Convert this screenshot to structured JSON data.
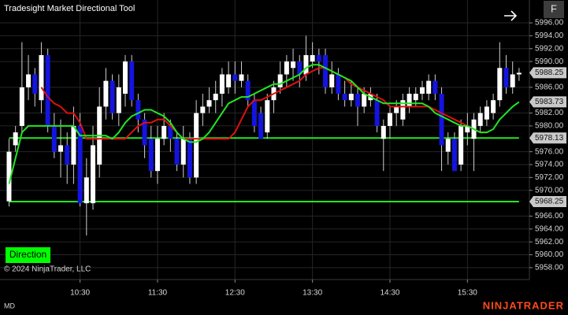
{
  "chart_data": {
    "type": "candlestick",
    "title": "Tradesight Market Directional Tool",
    "copyright": "© 2024 NinjaTrader, LLC",
    "button": "Direction",
    "corner_button": "F",
    "status": "MD",
    "brand": "NINJATRADER",
    "up_color": "#ffffff",
    "down_color": "#1414e0",
    "wick_color": "#cfcfcf",
    "grid": true,
    "x": [
      "09:35",
      "09:40",
      "09:45",
      "09:50",
      "09:55",
      "10:00",
      "10:05",
      "10:10",
      "10:15",
      "10:20",
      "10:25",
      "10:30",
      "10:35",
      "10:40",
      "10:45",
      "10:50",
      "10:55",
      "11:00",
      "11:05",
      "11:10",
      "11:15",
      "11:20",
      "11:25",
      "11:30",
      "11:35",
      "11:40",
      "11:45",
      "11:50",
      "11:55",
      "12:00",
      "12:05",
      "12:10",
      "12:15",
      "12:20",
      "12:25",
      "12:30",
      "12:35",
      "12:40",
      "12:45",
      "12:50",
      "12:55",
      "13:00",
      "13:05",
      "13:10",
      "13:15",
      "13:20",
      "13:25",
      "13:30",
      "13:35",
      "13:40",
      "13:45",
      "13:50",
      "13:55",
      "14:00",
      "14:05",
      "14:10",
      "14:15",
      "14:20",
      "14:25",
      "14:30",
      "14:35",
      "14:40",
      "14:45",
      "14:50",
      "14:55",
      "15:00",
      "15:05",
      "15:10",
      "15:15",
      "15:20",
      "15:25",
      "15:30",
      "15:35",
      "15:40",
      "15:45",
      "15:50",
      "15:55",
      "16:00",
      "16:05",
      "16:10"
    ],
    "open": [
      5968.3,
      5977,
      5980,
      5986,
      5988,
      5984,
      5991,
      5980,
      5976,
      5977,
      5974,
      5980,
      5968,
      5968,
      5974,
      5983,
      5987,
      5982,
      5985,
      5990,
      5984,
      5981,
      5978,
      5973,
      5978,
      5980,
      5978,
      5974,
      5978,
      5972,
      5982,
      5983,
      5984,
      5985,
      5986,
      5988,
      5987,
      5987,
      5984,
      5982,
      5979,
      5984,
      5986,
      5988,
      5989,
      5990,
      5988,
      5990,
      5991,
      5991,
      5986,
      5988,
      5985,
      5984,
      5985,
      5983,
      5984,
      5984,
      5978,
      5980,
      5982,
      5981,
      5983,
      5984,
      5985,
      5985,
      5987,
      5985,
      5976,
      5978,
      5974,
      5979,
      5978,
      5980,
      5981,
      5982,
      5984,
      5989,
      5986,
      5988
    ],
    "high": [
      5978,
      5980,
      5993,
      5991,
      5989,
      5993,
      5992,
      5982,
      5981,
      5979,
      5983,
      5982,
      5975,
      5980,
      5986,
      5989,
      5988,
      5988,
      5991,
      5991,
      5985,
      5982,
      5980,
      5980,
      5982,
      5981,
      5979,
      5980,
      5979,
      5984,
      5985,
      5986,
      5987,
      5989,
      5990,
      5990,
      5990,
      5988,
      5985,
      5983,
      5985,
      5987,
      5990,
      5991,
      5992,
      5991,
      5994,
      5993,
      5992,
      5992,
      5990,
      5989,
      5987,
      5987,
      5986,
      5986,
      5986,
      5985,
      5981,
      5983,
      5984,
      5985,
      5986,
      5986,
      5987,
      5988,
      5988,
      5986,
      5979,
      5979,
      5981,
      5982,
      5982,
      5983,
      5984,
      5985,
      5993,
      5991,
      5990,
      5989
    ],
    "low": [
      5967.5,
      5976,
      5979,
      5984,
      5983,
      5982,
      5979,
      5975,
      5972,
      5971,
      5971,
      5967.5,
      5963,
      5967,
      5972,
      5981,
      5981,
      5980,
      5983,
      5983,
      5979,
      5975,
      5972,
      5971,
      5977,
      5976,
      5973,
      5972,
      5971,
      5971,
      5980,
      5982,
      5982,
      5983,
      5985,
      5985,
      5986,
      5983,
      5979,
      5978,
      5978,
      5982,
      5985,
      5986,
      5987,
      5986,
      5987,
      5989,
      5988,
      5985,
      5985,
      5984,
      5983,
      5983,
      5980,
      5982,
      5983,
      5979,
      5973,
      5978,
      5980,
      5980,
      5982,
      5983,
      5984,
      5984,
      5984,
      5973,
      5974,
      5973,
      5973,
      5977,
      5973,
      5979,
      5980,
      5981,
      5983,
      5985,
      5985,
      5987
    ],
    "close": [
      5976,
      5979,
      5986,
      5988,
      5985,
      5991,
      5980,
      5976,
      5977,
      5974,
      5980,
      5968,
      5972,
      5977,
      5983,
      5987,
      5982,
      5986,
      5990,
      5984,
      5981,
      5977,
      5973,
      5978,
      5980,
      5978,
      5974,
      5978,
      5972,
      5982,
      5983,
      5984,
      5985,
      5988,
      5988,
      5987,
      5988,
      5984,
      5980,
      5978,
      5984,
      5986,
      5988,
      5990,
      5990,
      5988,
      5991,
      5991,
      5990,
      5986,
      5988,
      5985,
      5984,
      5985,
      5983,
      5985,
      5985,
      5980,
      5980,
      5982,
      5983,
      5984,
      5985,
      5985,
      5986,
      5987,
      5985,
      5977,
      5978,
      5973,
      5980,
      5980,
      5981,
      5982,
      5983,
      5984,
      5989,
      5986,
      5988,
      5988.25
    ],
    "lines": [
      {
        "color": "#e01010",
        "values": [
          null,
          null,
          null,
          null,
          null,
          5986,
          5984.5,
          5983.5,
          5983,
          5982,
          5982,
          5980.5,
          5978,
          5978,
          5978,
          5978,
          5978,
          5978,
          5978,
          5979,
          5980,
          5980.5,
          5980.5,
          5981,
          5981,
          5980,
          5979,
          5978,
          5978,
          5978,
          5978,
          5978,
          5978,
          5978,
          5978,
          5979,
          5981,
          5983,
          5984,
          5984,
          5984.5,
          5985,
          5985.5,
          5986,
          5986.5,
          5987,
          5988,
          5988.5,
          5989,
          5989,
          5988.5,
          5988,
          5987.5,
          5986.5,
          5986,
          5985.5,
          5985,
          5984.5,
          5984,
          5983,
          5983,
          5983,
          5983,
          5983,
          5983,
          5983,
          5982.5,
          5982,
          5981.5,
          5981,
          5980.5,
          5980,
          5979.5,
          5979,
          5979,
          null,
          null,
          null,
          null,
          null
        ]
      },
      {
        "color": "#22e622",
        "values": [
          5971,
          5975,
          5979,
          5980,
          5980,
          5980,
          5980,
          5980,
          5980,
          5980,
          5980,
          5978.5,
          5978.5,
          5978.5,
          5978.5,
          5978.5,
          5978,
          5979,
          5980.5,
          5981.5,
          5982,
          5982.5,
          5982.5,
          5982,
          5981.5,
          5980.5,
          5979,
          5978,
          5977.5,
          5977.5,
          5978,
          5979,
          5980.5,
          5982,
          5983.5,
          5984,
          5984.5,
          5984.5,
          5985,
          5985.5,
          5986,
          5986.5,
          5986.5,
          5987,
          5987.5,
          5988,
          5989,
          5989.5,
          5989.5,
          5989,
          5988.5,
          5988,
          5987.5,
          5987,
          5986,
          5985,
          5984.5,
          5984,
          5983.5,
          5983.5,
          5983.5,
          5983.5,
          5983.5,
          5983.5,
          5983.5,
          5983,
          5982,
          5981.5,
          5981,
          5980.5,
          5980,
          5980,
          5979.5,
          5979,
          5979,
          5979.5,
          5981,
          5982,
          5983,
          5983.73
        ]
      }
    ],
    "levels": [
      5978.13,
      5968.25
    ],
    "level_color": "#22e622",
    "ylim": [
      5956.15,
      5999.55
    ],
    "yticks": [
      {
        "value": 5958,
        "label": "5958.00"
      },
      {
        "value": 5960,
        "label": "5960.00"
      },
      {
        "value": 5962,
        "label": "5962.00"
      },
      {
        "value": 5964,
        "label": "5964.00"
      },
      {
        "value": 5966,
        "label": "5966.00"
      },
      {
        "value": 5970,
        "label": "5970.00"
      },
      {
        "value": 5972,
        "label": "5972.00"
      },
      {
        "value": 5974,
        "label": "5974.00"
      },
      {
        "value": 5976,
        "label": "5976.00"
      },
      {
        "value": 5980,
        "label": "5980.00"
      },
      {
        "value": 5982,
        "label": "5982.00"
      },
      {
        "value": 5986,
        "label": "5986.00"
      },
      {
        "value": 5990,
        "label": "5990.00"
      },
      {
        "value": 5992,
        "label": "5992.00"
      },
      {
        "value": 5994,
        "label": "5994.00"
      },
      {
        "value": 5996,
        "label": "5996.00"
      }
    ],
    "xlim": [
      "09:28",
      "16:18"
    ],
    "xticks": [
      "10:30",
      "11:30",
      "12:30",
      "13:30",
      "14:30",
      "15:30"
    ]
  }
}
